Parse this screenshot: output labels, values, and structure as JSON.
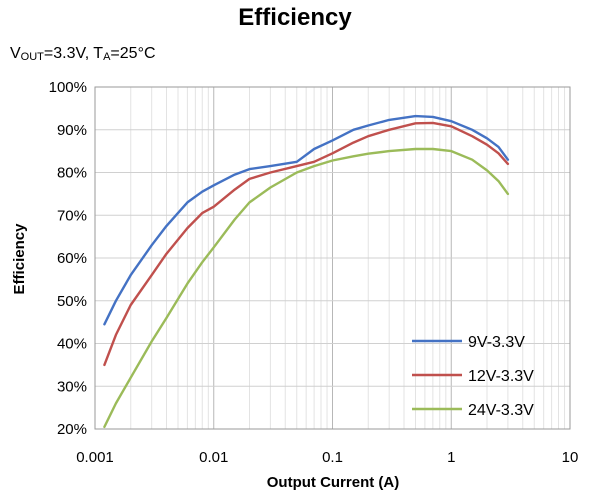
{
  "chart_data": {
    "type": "line",
    "title": "Efficiency",
    "conditions": {
      "v_main": "V",
      "v_sub": "OUT",
      "v_rest": "=3.3V, T",
      "t_sub": "A",
      "t_rest": "=25°C"
    },
    "xlabel": "Output Current (A)",
    "ylabel": "Efficiency",
    "xscale": "log",
    "xlim": [
      0.001,
      10
    ],
    "ylim": [
      20,
      100
    ],
    "x_ticks": [
      0.001,
      0.01,
      0.1,
      1,
      10
    ],
    "x_tick_labels": [
      "0.001",
      "0.01",
      "0.1",
      "1",
      "10"
    ],
    "y_ticks": [
      20,
      30,
      40,
      50,
      60,
      70,
      80,
      90,
      100
    ],
    "y_tick_labels": [
      "20%",
      "30%",
      "40%",
      "50%",
      "60%",
      "70%",
      "80%",
      "90%",
      "100%"
    ],
    "grid": true,
    "legend_position": "bottom-right",
    "series": [
      {
        "name": "9V-3.3V",
        "color": "#4472C4",
        "x": [
          0.0012,
          0.0015,
          0.002,
          0.003,
          0.004,
          0.006,
          0.008,
          0.01,
          0.015,
          0.02,
          0.03,
          0.05,
          0.07,
          0.1,
          0.15,
          0.2,
          0.3,
          0.5,
          0.7,
          1,
          1.5,
          2,
          2.5,
          3
        ],
        "y": [
          44.5,
          50.0,
          56.0,
          63.0,
          67.5,
          73.0,
          75.5,
          77.0,
          79.5,
          80.8,
          81.5,
          82.5,
          85.5,
          87.5,
          90.0,
          91.0,
          92.3,
          93.2,
          93.0,
          92.0,
          90.0,
          88.0,
          86.0,
          83.0
        ]
      },
      {
        "name": "12V-3.3V",
        "color": "#C0504D",
        "x": [
          0.0012,
          0.0015,
          0.002,
          0.003,
          0.004,
          0.006,
          0.008,
          0.01,
          0.015,
          0.02,
          0.03,
          0.05,
          0.07,
          0.1,
          0.15,
          0.2,
          0.3,
          0.5,
          0.7,
          1,
          1.5,
          2,
          2.5,
          3
        ],
        "y": [
          35.0,
          42.0,
          49.0,
          56.0,
          61.0,
          67.0,
          70.5,
          72.0,
          76.0,
          78.5,
          80.0,
          81.5,
          82.5,
          84.5,
          87.0,
          88.5,
          90.0,
          91.5,
          91.6,
          90.8,
          88.5,
          86.5,
          84.5,
          82.0
        ]
      },
      {
        "name": "24V-3.3V",
        "color": "#9BBB59",
        "x": [
          0.0012,
          0.0015,
          0.002,
          0.003,
          0.004,
          0.006,
          0.008,
          0.01,
          0.015,
          0.02,
          0.03,
          0.05,
          0.07,
          0.1,
          0.15,
          0.2,
          0.3,
          0.5,
          0.7,
          1,
          1.5,
          2,
          2.5,
          3
        ],
        "y": [
          20.5,
          26.0,
          32.0,
          40.5,
          46.0,
          54.0,
          59.0,
          62.5,
          69.0,
          73.0,
          76.5,
          80.0,
          81.5,
          82.8,
          83.8,
          84.4,
          85.0,
          85.5,
          85.5,
          85.0,
          83.0,
          80.5,
          78.0,
          75.0
        ]
      }
    ]
  }
}
